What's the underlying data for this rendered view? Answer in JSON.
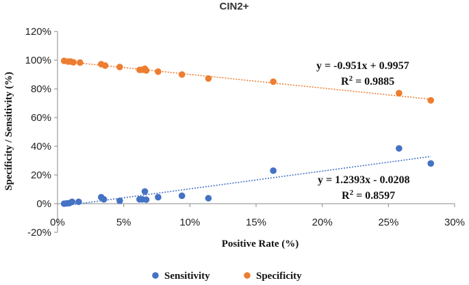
{
  "chart_data": {
    "type": "scatter",
    "title": "CIN2+",
    "xlabel": "Positive Rate (%)",
    "ylabel": "Specificity / Sensitivity (%)",
    "xlim": [
      0,
      0.3
    ],
    "ylim": [
      -0.2,
      1.2
    ],
    "x_ticks": [
      0,
      0.05,
      0.1,
      0.15,
      0.2,
      0.25,
      0.3
    ],
    "x_tick_labels": [
      "0%",
      "5%",
      "10%",
      "15%",
      "20%",
      "25%",
      "30%"
    ],
    "y_ticks": [
      -0.2,
      0,
      0.2,
      0.4,
      0.6,
      0.8,
      1.0,
      1.2
    ],
    "y_tick_labels": [
      "-20%",
      "0%",
      "20%",
      "40%",
      "60%",
      "80%",
      "100%",
      "120%"
    ],
    "grid": false,
    "legend_position": "bottom",
    "series": [
      {
        "name": "Sensitivity",
        "color": "#4472C4",
        "points": [
          [
            0.005,
            0.0
          ],
          [
            0.007,
            0.002
          ],
          [
            0.009,
            0.004
          ],
          [
            0.011,
            0.013
          ],
          [
            0.016,
            0.013
          ],
          [
            0.033,
            0.045
          ],
          [
            0.035,
            0.03
          ],
          [
            0.047,
            0.02
          ],
          [
            0.062,
            0.03
          ],
          [
            0.064,
            0.03
          ],
          [
            0.066,
            0.085
          ],
          [
            0.067,
            0.028
          ],
          [
            0.076,
            0.045
          ],
          [
            0.094,
            0.055
          ],
          [
            0.114,
            0.038
          ],
          [
            0.163,
            0.23
          ],
          [
            0.258,
            0.385
          ],
          [
            0.282,
            0.28
          ]
        ],
        "trendline": {
          "slope": 1.2393,
          "intercept": -0.0208,
          "x_range": [
            0.005,
            0.282
          ]
        },
        "equation": "y = 1.2393x - 0.0208",
        "r2_prefix": "R",
        "r2_sup": "2",
        "r2_value": " = 0.8597"
      },
      {
        "name": "Specificity",
        "color": "#ED7D31",
        "points": [
          [
            0.005,
            0.995
          ],
          [
            0.008,
            0.99
          ],
          [
            0.01,
            0.99
          ],
          [
            0.012,
            0.985
          ],
          [
            0.017,
            0.983
          ],
          [
            0.033,
            0.972
          ],
          [
            0.036,
            0.962
          ],
          [
            0.047,
            0.952
          ],
          [
            0.062,
            0.932
          ],
          [
            0.064,
            0.933
          ],
          [
            0.066,
            0.94
          ],
          [
            0.067,
            0.928
          ],
          [
            0.076,
            0.92
          ],
          [
            0.094,
            0.9
          ],
          [
            0.114,
            0.872
          ],
          [
            0.163,
            0.85
          ],
          [
            0.258,
            0.77
          ],
          [
            0.282,
            0.72
          ]
        ],
        "trendline": {
          "slope": -0.951,
          "intercept": 0.9957,
          "x_range": [
            0.005,
            0.282
          ]
        },
        "equation": "y = -0.951x + 0.9957",
        "r2_prefix": "R",
        "r2_sup": "2",
        "r2_value": " = 0.9885"
      }
    ]
  }
}
